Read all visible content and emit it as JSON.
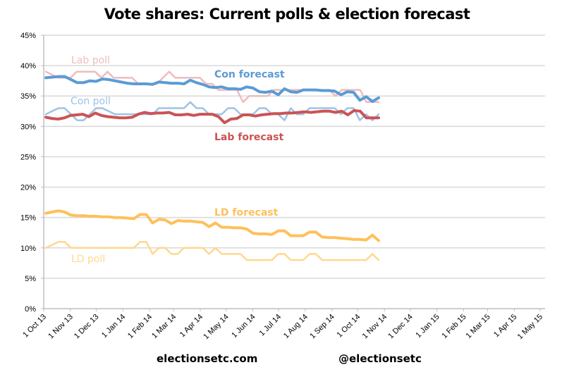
{
  "chart_data": {
    "type": "line",
    "title": "Vote shares: Current polls & election forecast",
    "xlabel": "",
    "ylabel": "",
    "ylim": [
      0,
      45
    ],
    "y_ticks": [
      "0%",
      "5%",
      "10%",
      "15%",
      "20%",
      "25%",
      "30%",
      "35%",
      "40%",
      "45%"
    ],
    "y_tick_values": [
      0,
      5,
      10,
      15,
      20,
      25,
      30,
      35,
      40,
      45
    ],
    "x_ticks": [
      "1 Oct 13",
      "1 Nov 13",
      "1 Dec 13",
      "1 Jan 14",
      "1 Feb 14",
      "1 Mar 14",
      "1 Apr 14",
      "1 May 14",
      "1 Jun 14",
      "1 Jul 14",
      "1 Aug 14",
      "1 Sep 14",
      "1 Oct 14",
      "1 Nov 14",
      "1 Dec 14",
      "1 Jan 15",
      "1 Feb 15",
      "1 Mar 15",
      "1 Apr 15",
      "1 May 15"
    ],
    "x_tick_days": [
      0,
      31,
      61,
      92,
      123,
      151,
      182,
      212,
      243,
      273,
      304,
      335,
      365,
      396,
      426,
      457,
      488,
      516,
      547,
      577
    ],
    "x_range_days": [
      0,
      577
    ],
    "grid": true,
    "legend": "inline-labels",
    "x_start": "1 Oct 13",
    "x_step_days": 7,
    "x_offset_days": 1,
    "series": [
      {
        "name": "Lab poll",
        "label": "Lab poll",
        "color": "#eebcbc",
        "width": 2.5,
        "values": [
          39,
          38.5,
          38,
          38,
          38,
          39,
          39,
          39,
          39,
          38,
          39,
          38,
          38,
          38,
          38,
          37,
          37,
          37,
          37,
          38,
          39,
          38,
          38,
          38,
          38,
          38,
          37,
          37,
          36,
          36,
          36,
          36,
          34,
          35,
          35,
          35,
          35,
          36,
          36,
          36,
          36,
          36,
          36,
          36,
          36,
          36,
          36,
          35,
          36,
          36,
          36,
          36,
          34,
          34,
          34
        ]
      },
      {
        "name": "Con forecast",
        "label": "Con forecast",
        "color": "#5b9bd5",
        "width": 4,
        "values": [
          38,
          38.1,
          38.2,
          38.2,
          37.7,
          37.2,
          37.2,
          37.5,
          37.4,
          37.8,
          37.7,
          37.5,
          37.3,
          37.1,
          37,
          37,
          37,
          36.9,
          37.3,
          37.2,
          37.1,
          37.1,
          37,
          37.6,
          37.2,
          36.9,
          36.5,
          36.4,
          36.5,
          36.2,
          36.2,
          36.1,
          36.5,
          36.3,
          35.7,
          35.6,
          35.8,
          35.2,
          36.2,
          35.7,
          35.6,
          36,
          36,
          36,
          35.9,
          35.9,
          35.8,
          35.2,
          35.7,
          35.6,
          34.3,
          34.9,
          34.1,
          34.7
        ]
      },
      {
        "name": "Con poll",
        "label": "Con poll",
        "color": "#9dc3e6",
        "width": 2.5,
        "values": [
          32,
          32.5,
          33,
          33,
          32,
          31,
          31,
          32,
          33,
          33,
          32.5,
          32,
          32,
          32,
          32,
          32,
          32,
          32,
          33,
          33,
          33,
          33,
          33,
          34,
          33,
          33,
          32,
          32,
          32,
          33,
          33,
          32,
          32,
          32,
          33,
          33,
          32,
          32,
          31,
          33,
          32,
          32,
          33,
          33,
          33,
          33,
          33,
          32,
          33,
          33,
          31,
          32,
          31,
          32
        ]
      },
      {
        "name": "Lab forecast",
        "label": "Lab forecast",
        "color": "#cb5355",
        "width": 4,
        "values": [
          31.5,
          31.3,
          31.2,
          31.4,
          31.8,
          31.9,
          32,
          31.6,
          32.2,
          31.8,
          31.6,
          31.5,
          31.4,
          31.4,
          31.5,
          32,
          32.3,
          32.1,
          32.2,
          32.2,
          32.3,
          31.9,
          31.9,
          32,
          31.8,
          32,
          32,
          32,
          31.6,
          30.6,
          31.2,
          31.3,
          31.9,
          31.9,
          31.7,
          31.9,
          32,
          32.1,
          32.1,
          32.2,
          32.2,
          32.3,
          32.4,
          32.3,
          32.4,
          32.5,
          32.5,
          32.3,
          32.5,
          31.9,
          32.6,
          32.5,
          31.4,
          31.4,
          31.4
        ]
      },
      {
        "name": "LD forecast",
        "label": "LD forecast",
        "color": "#ffc05a",
        "width": 4,
        "values": [
          15.7,
          15.9,
          16.1,
          15.9,
          15.4,
          15.3,
          15.3,
          15.2,
          15.2,
          15.1,
          15.1,
          15,
          15,
          14.9,
          14.8,
          15.5,
          15.5,
          14.1,
          14.7,
          14.6,
          14,
          14.5,
          14.4,
          14.4,
          14.3,
          14.2,
          13.5,
          14.1,
          13.4,
          13.4,
          13.3,
          13.3,
          13.1,
          12.4,
          12.3,
          12.3,
          12.2,
          12.8,
          12.8,
          12,
          12,
          12,
          12.6,
          12.6,
          11.8,
          11.7,
          11.7,
          11.6,
          11.5,
          11.4,
          11.4,
          11.3,
          12.1,
          11.2
        ]
      },
      {
        "name": "LD poll",
        "label": "LD poll",
        "color": "#ffd88f",
        "width": 2.5,
        "values": [
          10,
          10.5,
          11,
          11,
          10,
          10,
          10,
          10,
          10,
          10,
          10,
          10,
          10,
          10,
          10,
          11,
          11,
          9,
          10,
          10,
          9,
          9,
          10,
          10,
          10,
          10,
          9,
          10,
          9,
          9,
          9,
          9,
          8,
          8,
          8,
          8,
          8,
          9,
          9,
          8,
          8,
          8,
          9,
          9,
          8,
          8,
          8,
          8,
          8,
          8,
          8,
          8,
          9,
          8
        ]
      }
    ]
  },
  "footer": {
    "left": "electionsetc.com",
    "right": "@electionsetc"
  }
}
